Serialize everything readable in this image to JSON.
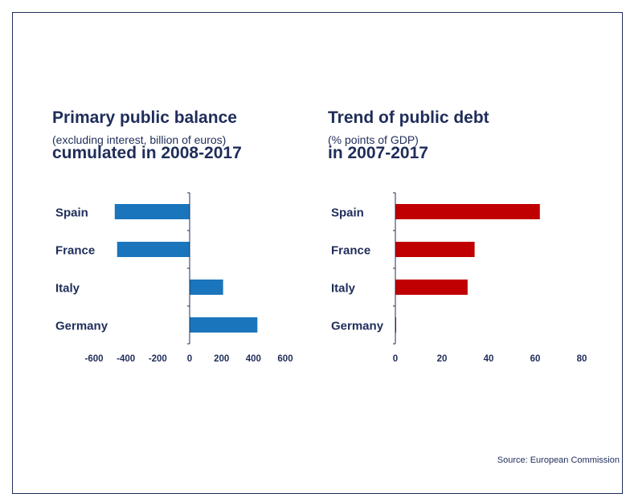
{
  "charts": [
    {
      "title_lines": [
        "Primary public balance",
        "cumulated in 2008-2017"
      ],
      "subtitle": "(excluding interest, billion of euros)"
    },
    {
      "title_lines": [
        "Trend of public debt",
        "in 2007-2017"
      ],
      "subtitle": "(% points of GDP)"
    }
  ],
  "source": "Source: European Commission",
  "colors": {
    "text": "#1f2d5a",
    "bar_left": "#1a75bc",
    "bar_right": "#c00000",
    "axis": "#1f2d5a"
  },
  "chart_data": [
    {
      "type": "bar",
      "orientation": "horizontal",
      "title": "Primary public balance cumulated in 2008-2017",
      "subtitle": "(excluding interest, billion of euros)",
      "categories": [
        "Spain",
        "France",
        "Italy",
        "Germany"
      ],
      "values": [
        -470,
        -455,
        210,
        425
      ],
      "xlim": [
        -600,
        600
      ],
      "xticks": [
        -600,
        -400,
        -200,
        0,
        200,
        400,
        600
      ],
      "grid": false
    },
    {
      "type": "bar",
      "orientation": "horizontal",
      "title": "Trend of public debt in 2007-2017",
      "subtitle": "(% points of GDP)",
      "categories": [
        "Spain",
        "France",
        "Italy",
        "Germany"
      ],
      "values": [
        62,
        34,
        31,
        0.3
      ],
      "xlim": [
        0,
        80
      ],
      "xticks": [
        0,
        20,
        40,
        60,
        80
      ],
      "grid": false
    }
  ]
}
